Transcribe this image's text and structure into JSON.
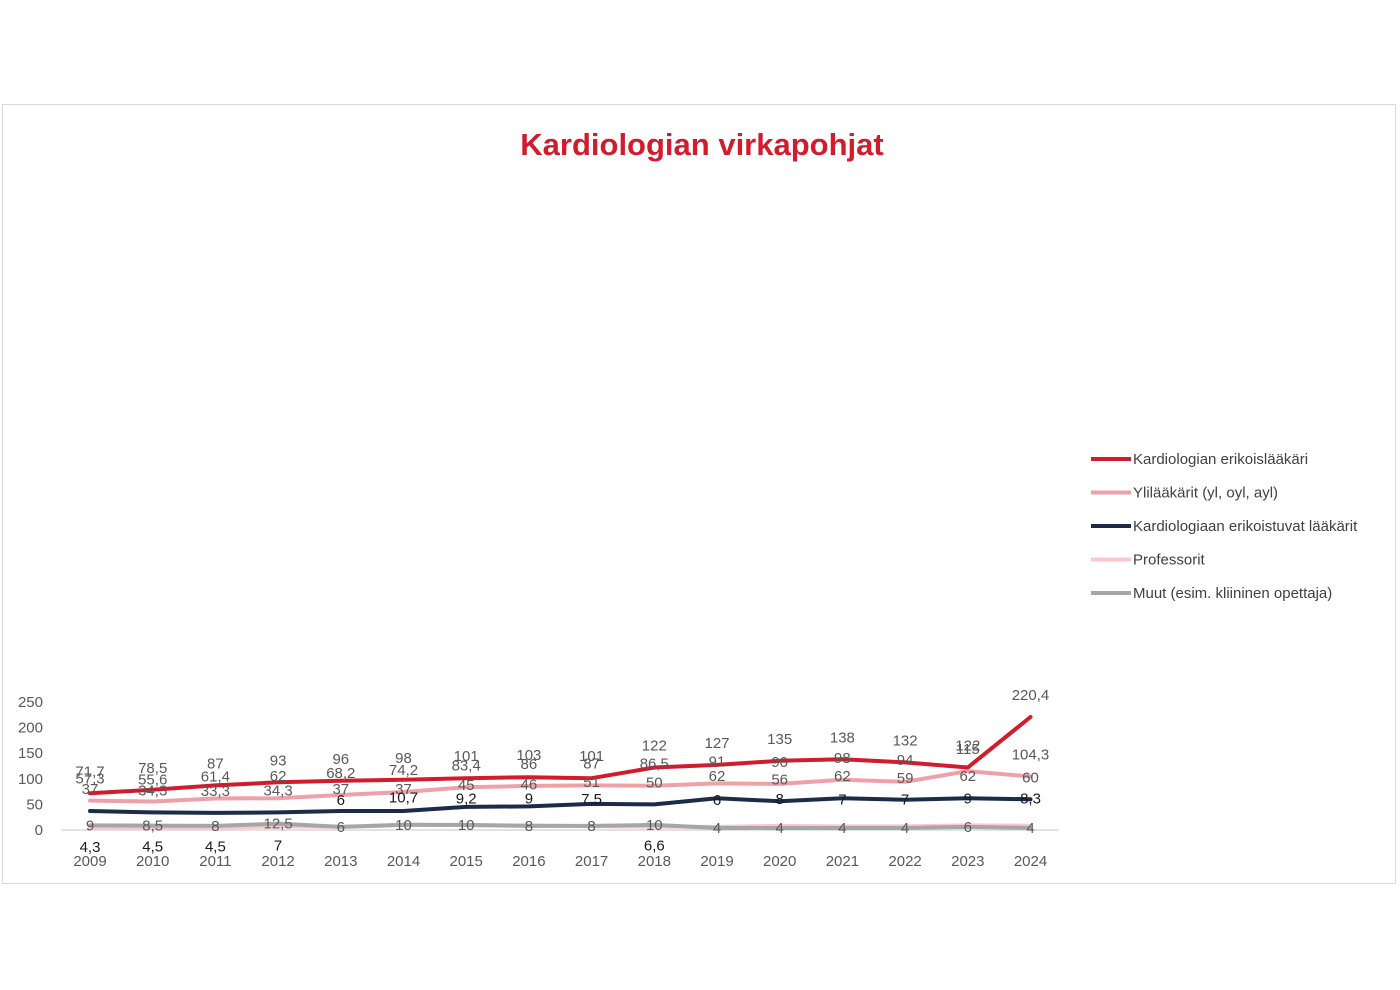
{
  "chart_data": {
    "type": "line",
    "title": "Kardiologian virkapohjat",
    "xlabel": "",
    "ylabel": "",
    "ylim": [
      0,
      250
    ],
    "yticks": [
      0,
      50,
      100,
      150,
      200,
      250
    ],
    "grid": false,
    "legend_position": "right",
    "categories": [
      "2009",
      "2010",
      "2011",
      "2012",
      "2013",
      "2014",
      "2015",
      "2016",
      "2017",
      "2018",
      "2019",
      "2020",
      "2021",
      "2022",
      "2023",
      "2024"
    ],
    "series": [
      {
        "name": "Kardiologian erikoislääkäri",
        "color": "#d01c2c",
        "values": [
          71.7,
          78.5,
          87,
          93,
          96,
          98,
          101,
          103,
          101,
          122,
          127,
          135,
          138,
          132,
          122,
          220.4
        ],
        "labels": [
          "71,7",
          "78,5",
          "87",
          "93",
          "96",
          "98",
          "101",
          "103",
          "101",
          "122",
          "127",
          "135",
          "138",
          "132",
          "122",
          "220,4"
        ]
      },
      {
        "name": "Ylilääkärit (yl, oyl, ayl)",
        "color": "#f0a0a8",
        "values": [
          57.3,
          55.6,
          61.4,
          62,
          68.2,
          74.2,
          83.4,
          86,
          87,
          86.5,
          91,
          90,
          98,
          94,
          115,
          104.3
        ],
        "labels": [
          "57,3",
          "55,6",
          "61,4",
          "62",
          "68,2",
          "74,2",
          "83,4",
          "86",
          "87",
          "86,5",
          "91",
          "90",
          "98",
          "94",
          "115",
          "104,3"
        ]
      },
      {
        "name": "Kardiologiaan erikoistuvat lääkärit",
        "color": "#1c2b4a",
        "values": [
          37,
          34.3,
          33.3,
          34.3,
          37,
          37,
          45,
          46,
          51,
          50,
          62,
          56,
          62,
          59,
          62,
          60
        ],
        "labels": [
          "37",
          "34,3",
          "33,3",
          "34,3",
          "37",
          "37",
          "45",
          "46",
          "51",
          "50",
          "62",
          "56",
          "62",
          "59",
          "62",
          "60"
        ]
      },
      {
        "name": "Professorit",
        "color": "#f8c8cc",
        "values": [
          4.3,
          4.5,
          4.5,
          7,
          6,
          10.7,
          9.2,
          9,
          7.5,
          6.6,
          6,
          8,
          7,
          7,
          9,
          8.3
        ],
        "labels": [
          "4,3",
          "4,5",
          "4,5",
          "7",
          "6",
          "10,7",
          "9,2",
          "9",
          "7,5",
          "6,6",
          "6",
          "8",
          "7",
          "7",
          "9",
          "8,3"
        ]
      },
      {
        "name": "Muut (esim. kliininen opettaja)",
        "color": "#a6a6a6",
        "values": [
          9,
          8.5,
          8,
          12.5,
          6,
          10,
          10,
          8,
          8,
          10,
          4,
          4,
          4,
          4,
          6,
          4
        ],
        "labels": [
          "9",
          "8,5",
          "8",
          "12,5",
          "6",
          "10",
          "10",
          "8",
          "8",
          "10",
          "4",
          "4",
          "4",
          "4",
          "6",
          "4"
        ]
      }
    ]
  }
}
